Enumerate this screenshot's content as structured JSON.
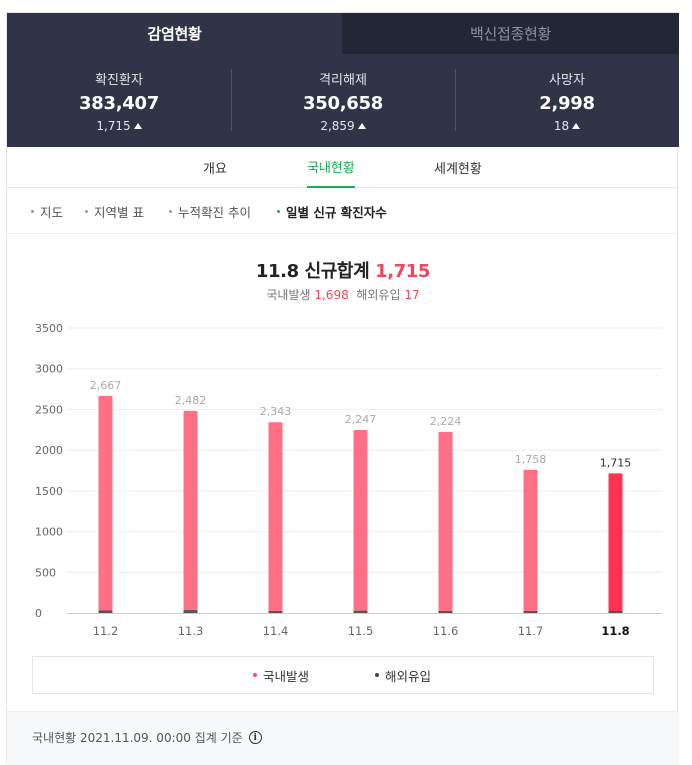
{
  "tabs": [
    {
      "label": "감염현황",
      "active": true
    },
    {
      "label": "백신접종현황",
      "active": false
    }
  ],
  "stats": [
    {
      "label": "확진환자",
      "value": "383,407",
      "delta": "1,715"
    },
    {
      "label": "격리해제",
      "value": "350,658",
      "delta": "2,859"
    },
    {
      "label": "사망자",
      "value": "2,998",
      "delta": "18"
    }
  ],
  "subtabs": [
    "개요",
    "국내현황",
    "세계현황"
  ],
  "filters": [
    "지도",
    "지역별 표",
    "누적확진 추이",
    "일별 신규 확진자수"
  ],
  "summary": {
    "title_prefix": "11.8 신규합계",
    "title_total": "1,715",
    "domestic_label": "국내발생",
    "domestic_value": "1,698",
    "overseas_label": "해외유입",
    "overseas_value": "17"
  },
  "chart_data": {
    "type": "bar",
    "categories": [
      "11.2",
      "11.3",
      "11.4",
      "11.5",
      "11.6",
      "11.7",
      "11.8"
    ],
    "value_labels": [
      "2,667",
      "2,482",
      "2,343",
      "2,247",
      "2,224",
      "1,758",
      "1,715"
    ],
    "series": [
      {
        "name": "국내발생",
        "values": [
          2636,
          2446,
          2321,
          2218,
          2199,
          1734,
          1698
        ],
        "color": "#ff6f85"
      },
      {
        "name": "해외유입",
        "values": [
          31,
          36,
          22,
          29,
          25,
          24,
          17
        ],
        "color": "#555555"
      }
    ],
    "totals": [
      2667,
      2482,
      2343,
      2247,
      2224,
      1758,
      1715
    ],
    "yticks": [
      0,
      500,
      1000,
      1500,
      2000,
      2500,
      3000,
      3500
    ],
    "ylim": [
      0,
      3500
    ],
    "highlight_index": 6,
    "highlight_color": "#ff3351",
    "grid": true,
    "legend_position": "bottom"
  },
  "legend": [
    {
      "label": "국내발생",
      "color": "#ff4d63"
    },
    {
      "label": "해외유입",
      "color": "#444444"
    }
  ],
  "footer": {
    "text": "국내현황 2021.11.09. 00:00 집계 기준"
  }
}
